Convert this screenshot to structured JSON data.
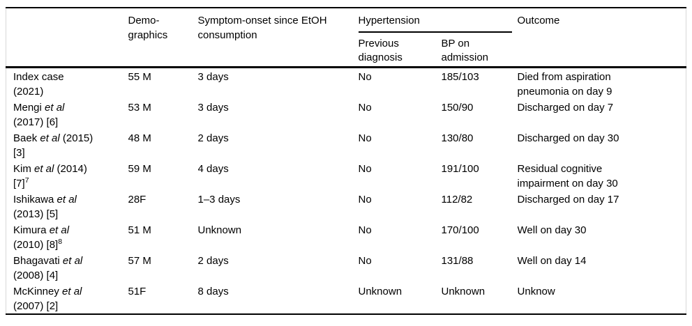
{
  "colors": {
    "text": "#000000",
    "background": "#ffffff",
    "main_rules": "#000000",
    "edge_rules": "#d8d8d8"
  },
  "table": {
    "header": {
      "study": "",
      "demographics": "Demo-\ngraphics",
      "symptom_onset": "Symptom-onset since EtOH\nconsumption",
      "hypertension_group": "Hypertension",
      "previous_diagnosis": "Previous\ndiagnosis",
      "bp_on_admission": "BP on\nadmission",
      "outcome": "Outcome"
    },
    "cell_names": [
      "study-cell",
      "demographics-cell",
      "symptom-onset-cell",
      "previous-diagnosis-cell",
      "bp-admission-cell",
      "outcome-cell"
    ],
    "rows": [
      {
        "cells": [
          [
            {
              "t": "Index case\n(2021)"
            }
          ],
          "55 M",
          "3 days",
          "No",
          "185/103",
          "Died from aspiration\npneumonia on day 9"
        ]
      },
      {
        "cells": [
          [
            {
              "t": "Mengi "
            },
            {
              "t": "et al",
              "i": true
            },
            {
              "t": "\n(2017) [6]"
            }
          ],
          "53 M",
          "3 days",
          "No",
          "150/90",
          "Discharged on day 7"
        ]
      },
      {
        "cells": [
          [
            {
              "t": "Baek "
            },
            {
              "t": "et al",
              "i": true
            },
            {
              "t": " (2015)\n[3]"
            }
          ],
          "48 M",
          "2 days",
          "No",
          "130/80",
          "Discharged on day 30"
        ]
      },
      {
        "cells": [
          [
            {
              "t": "Kim "
            },
            {
              "t": "et al",
              "i": true
            },
            {
              "t": " (2014)\n[7]"
            },
            {
              "t": "7",
              "s": true
            }
          ],
          "59 M",
          "4 days",
          "No",
          "191/100",
          "Residual cognitive\nimpairment on day 30"
        ]
      },
      {
        "cells": [
          [
            {
              "t": "Ishikawa "
            },
            {
              "t": "et al",
              "i": true
            },
            {
              "t": "\n(2013) [5]"
            }
          ],
          "28F",
          "1–3 days",
          "No",
          "112/82",
          "Discharged on day 17"
        ]
      },
      {
        "cells": [
          [
            {
              "t": "Kimura "
            },
            {
              "t": "et al",
              "i": true
            },
            {
              "t": "\n(2010) [8]"
            },
            {
              "t": "8",
              "s": true
            }
          ],
          "51 M",
          "Unknown",
          "No",
          "170/100",
          "Well on day 30"
        ]
      },
      {
        "cells": [
          [
            {
              "t": "Bhagavati "
            },
            {
              "t": "et al",
              "i": true
            },
            {
              "t": "\n(2008) [4]"
            }
          ],
          "57 M",
          "2 days",
          "No",
          "131/88",
          "Well on day 14"
        ]
      },
      {
        "cells": [
          [
            {
              "t": "McKinney "
            },
            {
              "t": "et al",
              "i": true
            },
            {
              "t": "\n(2007) [2]"
            }
          ],
          "51F",
          "8 days",
          "Unknown",
          "Unknown",
          "Unknow"
        ]
      }
    ]
  }
}
